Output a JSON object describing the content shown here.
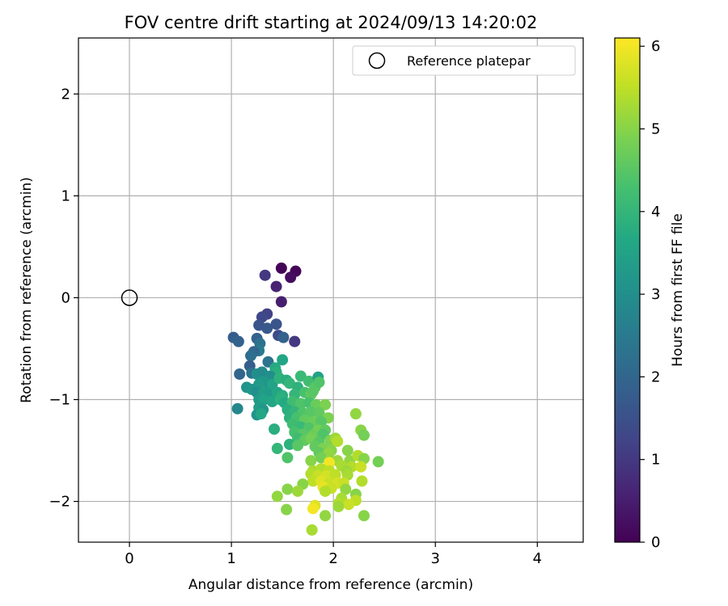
{
  "chart_data": {
    "type": "scatter",
    "title": "FOV centre drift starting at 2024/09/13 14:20:02",
    "xlabel": "Angular distance from reference (arcmin)",
    "ylabel": "Rotation from reference (arcmin)",
    "xlim": [
      -0.5,
      4.45
    ],
    "ylim": [
      -2.4,
      2.55
    ],
    "xticks": [
      0,
      1,
      2,
      3,
      4
    ],
    "yticks": [
      2,
      1,
      0,
      -1,
      -2
    ],
    "xtick_labels": [
      "0",
      "1",
      "2",
      "3",
      "4"
    ],
    "ytick_labels": [
      "2",
      "1",
      "0",
      "−1",
      "−2"
    ],
    "grid": true,
    "colormap": "viridis",
    "colorbar": {
      "label": "Hours from first FF file",
      "range": [
        0,
        6.1
      ],
      "ticks": [
        0,
        1,
        2,
        3,
        4,
        5,
        6
      ],
      "tick_labels": [
        "0",
        "1",
        "2",
        "3",
        "4",
        "5",
        "6"
      ]
    },
    "legend": {
      "placement": "top-right",
      "entries": [
        {
          "label": "Reference platepar",
          "marker": "open-circle"
        }
      ]
    },
    "reference": {
      "x": 0,
      "y": 0
    },
    "points": [
      [
        1.49,
        0.29,
        0.05
      ],
      [
        1.63,
        0.26,
        0.1
      ],
      [
        1.58,
        0.2,
        0.2
      ],
      [
        1.33,
        0.22,
        1.0
      ],
      [
        1.44,
        0.11,
        0.6
      ],
      [
        1.49,
        -0.04,
        0.5
      ],
      [
        1.35,
        -0.16,
        1.2
      ],
      [
        1.3,
        -0.19,
        1.3
      ],
      [
        1.27,
        -0.27,
        1.6
      ],
      [
        1.35,
        -0.3,
        1.7
      ],
      [
        1.44,
        -0.26,
        1.6
      ],
      [
        1.46,
        -0.37,
        1.4
      ],
      [
        1.51,
        -0.39,
        1.9
      ],
      [
        1.62,
        -0.43,
        1.0
      ],
      [
        1.02,
        -0.39,
        1.8
      ],
      [
        1.07,
        -0.43,
        1.9
      ],
      [
        1.25,
        -0.4,
        1.9
      ],
      [
        1.28,
        -0.45,
        2.3
      ],
      [
        1.27,
        -0.52,
        2.5
      ],
      [
        1.22,
        -0.53,
        2.0
      ],
      [
        1.19,
        -0.57,
        2.2
      ],
      [
        1.36,
        -0.63,
        2.3
      ],
      [
        1.18,
        -0.67,
        1.8
      ],
      [
        1.2,
        -0.74,
        2.3
      ],
      [
        1.08,
        -0.75,
        2.0
      ],
      [
        1.25,
        -0.75,
        3.0
      ],
      [
        1.3,
        -0.73,
        2.9
      ],
      [
        1.5,
        -0.61,
        3.6
      ],
      [
        1.43,
        -0.69,
        3.7
      ],
      [
        1.44,
        -0.73,
        3.8
      ],
      [
        1.38,
        -0.77,
        3.0
      ],
      [
        1.31,
        -0.82,
        3.2
      ],
      [
        1.27,
        -0.85,
        3.3
      ],
      [
        1.38,
        -0.87,
        3.1
      ],
      [
        1.4,
        -0.85,
        3.5
      ],
      [
        1.47,
        -0.79,
        3.9
      ],
      [
        1.54,
        -0.81,
        3.8
      ],
      [
        1.57,
        -0.84,
        4.0
      ],
      [
        1.65,
        -0.88,
        3.9
      ],
      [
        1.68,
        -0.77,
        4.1
      ],
      [
        1.76,
        -0.82,
        4.2
      ],
      [
        1.85,
        -0.78,
        3.5
      ],
      [
        1.82,
        -0.88,
        4.5
      ],
      [
        1.86,
        -0.83,
        4.4
      ],
      [
        1.15,
        -0.88,
        3.1
      ],
      [
        1.2,
        -0.9,
        3.2
      ],
      [
        1.25,
        -0.93,
        3.0
      ],
      [
        1.32,
        -0.93,
        3.4
      ],
      [
        1.37,
        -0.95,
        3.3
      ],
      [
        1.45,
        -0.93,
        3.6
      ],
      [
        1.5,
        -0.96,
        3.8
      ],
      [
        1.62,
        -0.95,
        4.0
      ],
      [
        1.72,
        -0.93,
        4.3
      ],
      [
        1.78,
        -0.95,
        4.6
      ],
      [
        1.8,
        -0.92,
        4.5
      ],
      [
        1.27,
        -1.0,
        3.3
      ],
      [
        1.32,
        -1.0,
        3.5
      ],
      [
        1.4,
        -1.02,
        3.6
      ],
      [
        1.48,
        -1.0,
        3.9
      ],
      [
        1.52,
        -1.03,
        3.7
      ],
      [
        1.6,
        -1.02,
        4.2
      ],
      [
        1.68,
        -1.04,
        4.4
      ],
      [
        1.76,
        -1.03,
        4.3
      ],
      [
        1.83,
        -1.05,
        4.7
      ],
      [
        1.92,
        -1.05,
        4.9
      ],
      [
        1.06,
        -1.09,
        2.8
      ],
      [
        1.27,
        -1.08,
        3.4
      ],
      [
        1.31,
        -1.1,
        3.2
      ],
      [
        1.55,
        -1.1,
        3.8
      ],
      [
        1.62,
        -1.12,
        4.0
      ],
      [
        1.7,
        -1.13,
        4.4
      ],
      [
        1.78,
        -1.12,
        4.5
      ],
      [
        1.86,
        -1.13,
        4.6
      ],
      [
        1.95,
        -1.18,
        4.9
      ],
      [
        1.25,
        -1.15,
        3.1
      ],
      [
        1.29,
        -1.14,
        3.6
      ],
      [
        1.57,
        -1.18,
        3.9
      ],
      [
        1.64,
        -1.18,
        4.3
      ],
      [
        1.72,
        -1.2,
        4.6
      ],
      [
        1.8,
        -1.22,
        4.7
      ],
      [
        1.88,
        -1.22,
        4.5
      ],
      [
        1.6,
        -1.24,
        4.2
      ],
      [
        1.68,
        -1.27,
        4.1
      ],
      [
        1.76,
        -1.28,
        4.4
      ],
      [
        1.85,
        -1.3,
        4.8
      ],
      [
        1.92,
        -1.3,
        4.6
      ],
      [
        1.42,
        -1.29,
        3.8
      ],
      [
        1.62,
        -1.32,
        4.3
      ],
      [
        1.7,
        -1.34,
        4.5
      ],
      [
        1.8,
        -1.35,
        4.7
      ],
      [
        1.9,
        -1.34,
        4.4
      ],
      [
        1.65,
        -1.38,
        4.2
      ],
      [
        1.72,
        -1.4,
        4.6
      ],
      [
        1.78,
        -1.38,
        4.8
      ],
      [
        1.86,
        -1.42,
        4.5
      ],
      [
        1.97,
        -1.4,
        4.9
      ],
      [
        2.02,
        -1.38,
        5.2
      ],
      [
        2.04,
        -1.41,
        5.4
      ],
      [
        1.57,
        -1.44,
        3.9
      ],
      [
        1.65,
        -1.45,
        4.5
      ],
      [
        1.82,
        -1.46,
        4.6
      ],
      [
        1.9,
        -1.48,
        4.9
      ],
      [
        1.98,
        -1.5,
        5.0
      ],
      [
        1.45,
        -1.48,
        4.0
      ],
      [
        1.86,
        -1.52,
        4.6
      ],
      [
        1.95,
        -1.53,
        5.1
      ],
      [
        2.14,
        -1.5,
        5.0
      ],
      [
        1.55,
        -1.57,
        4.4
      ],
      [
        1.78,
        -1.6,
        5.0
      ],
      [
        1.88,
        -1.57,
        4.8
      ],
      [
        1.96,
        -1.6,
        5.1
      ],
      [
        2.04,
        -1.6,
        5.2
      ],
      [
        2.16,
        -1.6,
        5.1
      ],
      [
        2.24,
        -1.55,
        5.4
      ],
      [
        2.3,
        -1.58,
        5.0
      ],
      [
        2.44,
        -1.61,
        4.8
      ],
      [
        2.22,
        -1.14,
        5.1
      ],
      [
        2.27,
        -1.3,
        5.0
      ],
      [
        2.3,
        -1.35,
        4.8
      ],
      [
        1.96,
        -1.62,
        6.0
      ],
      [
        2.08,
        -1.65,
        5.3
      ],
      [
        2.18,
        -1.66,
        5.4
      ],
      [
        2.27,
        -1.66,
        5.6
      ],
      [
        1.8,
        -1.7,
        5.3
      ],
      [
        1.88,
        -1.68,
        5.4
      ],
      [
        1.96,
        -1.7,
        5.5
      ],
      [
        2.13,
        -1.7,
        5.2
      ],
      [
        1.78,
        -1.73,
        5.4
      ],
      [
        1.85,
        -1.75,
        5.6
      ],
      [
        1.93,
        -1.75,
        5.7
      ],
      [
        2.02,
        -1.74,
        5.5
      ],
      [
        2.14,
        -1.74,
        5.3
      ],
      [
        1.8,
        -1.8,
        5.5
      ],
      [
        1.88,
        -1.8,
        5.8
      ],
      [
        1.96,
        -1.82,
        5.6
      ],
      [
        2.04,
        -1.82,
        5.7
      ],
      [
        2.1,
        -1.82,
        5.6
      ],
      [
        2.28,
        -1.8,
        5.4
      ],
      [
        1.7,
        -1.83,
        5.0
      ],
      [
        1.9,
        -1.86,
        5.9
      ],
      [
        1.98,
        -1.87,
        5.6
      ],
      [
        2.12,
        -1.88,
        5.1
      ],
      [
        1.55,
        -1.88,
        5.0
      ],
      [
        1.65,
        -1.9,
        5.2
      ],
      [
        1.92,
        -1.9,
        5.4
      ],
      [
        2.22,
        -1.93,
        5.0
      ],
      [
        1.45,
        -1.95,
        5.1
      ],
      [
        2.08,
        -1.97,
        5.3
      ],
      [
        2.22,
        -1.99,
        5.5
      ],
      [
        2.05,
        -2.02,
        5.4
      ],
      [
        2.15,
        -2.03,
        5.6
      ],
      [
        1.82,
        -2.04,
        5.8
      ],
      [
        1.8,
        -2.07,
        6.0
      ],
      [
        2.05,
        -2.05,
        5.2
      ],
      [
        1.54,
        -2.08,
        5.0
      ],
      [
        1.92,
        -2.14,
        5.1
      ],
      [
        2.3,
        -2.14,
        5.0
      ],
      [
        1.79,
        -2.28,
        5.3
      ]
    ]
  }
}
